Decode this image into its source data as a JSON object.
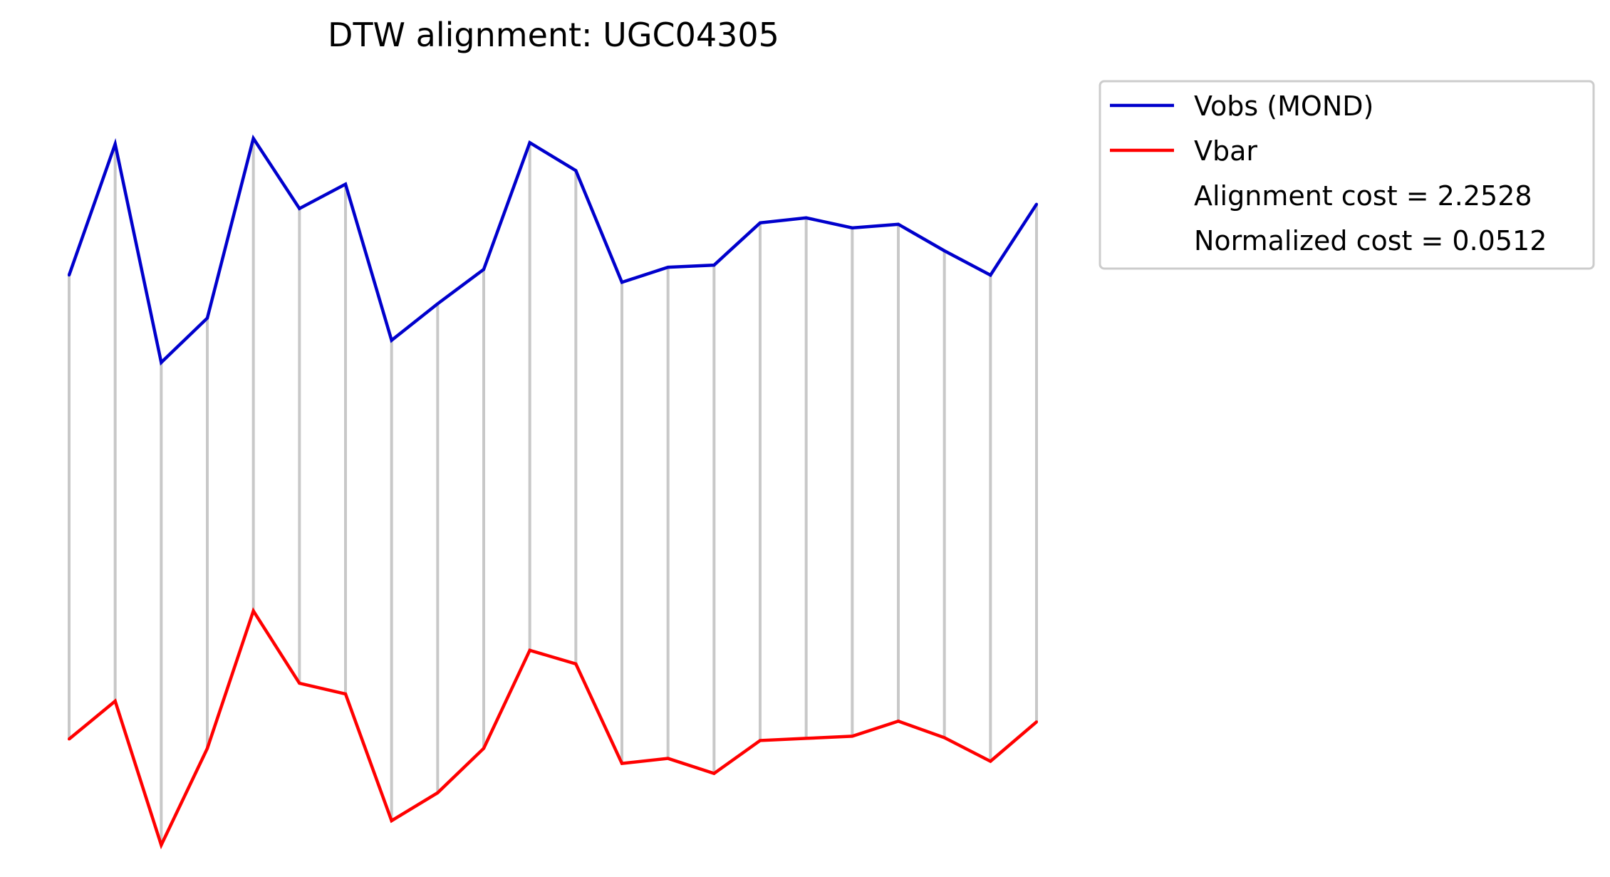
{
  "chart_data": {
    "type": "line",
    "title": "DTW alignment: UGC04305",
    "xlabel": "",
    "ylabel": "",
    "axes_visible": false,
    "grid": false,
    "alignment_lines": true,
    "alignment_line_color": "#c8c8c8",
    "legend_position": "upper-right-outside",
    "x": [
      0,
      1,
      2,
      3,
      4,
      5,
      6,
      7,
      8,
      9,
      10,
      11,
      12,
      13,
      14,
      15,
      16,
      17,
      18,
      19,
      20,
      21
    ],
    "ylim": [
      0,
      100
    ],
    "series": [
      {
        "name": "Vobs (MOND)",
        "color": "#0000cc",
        "values": [
          76.5,
          94.8,
          64.3,
          70.5,
          95.6,
          85.8,
          89.2,
          67.4,
          72.5,
          77.3,
          95.0,
          91.1,
          75.5,
          77.6,
          77.9,
          83.8,
          84.5,
          83.1,
          83.6,
          79.9,
          76.5,
          86.4
        ]
      },
      {
        "name": "Vbar",
        "color": "#ff0000",
        "values": [
          11.7,
          17.0,
          -3.1,
          10.4,
          29.6,
          19.5,
          18.0,
          0.3,
          4.2,
          10.4,
          24.1,
          22.2,
          8.3,
          9.0,
          6.9,
          11.5,
          11.8,
          12.1,
          14.2,
          11.9,
          8.6,
          14.1
        ]
      }
    ],
    "legend": {
      "entries": [
        {
          "label": "Vobs (MOND)",
          "color": "#0000cc",
          "swatch": "line"
        },
        {
          "label": "Vbar",
          "color": "#ff0000",
          "swatch": "line"
        },
        {
          "label": "Alignment cost = 2.2528",
          "swatch": "none"
        },
        {
          "label": "Normalized cost = 0.0512",
          "swatch": "none"
        }
      ]
    },
    "alignment_cost_label": "Alignment cost = 2.2528",
    "normalized_cost_label": "Normalized cost = 0.0512"
  }
}
